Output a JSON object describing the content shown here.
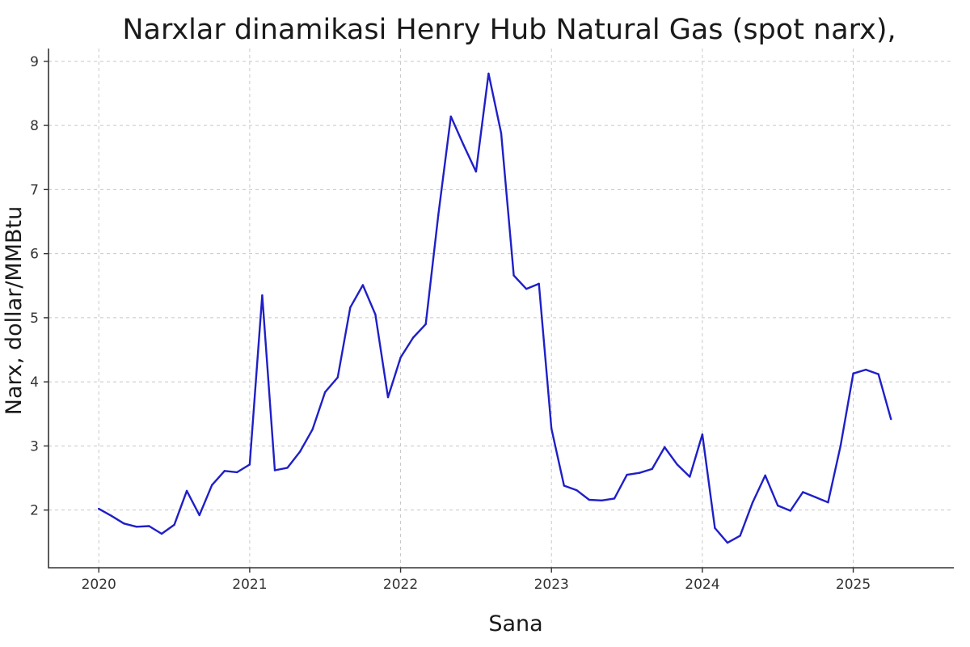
{
  "chart_data": {
    "type": "line",
    "title": "Narxlar dinamikasi Henry Hub Natural Gas (spot narx),",
    "xlabel": "Sana",
    "ylabel": "Narx, dollar/MMBtu",
    "x_ticks": [
      "2020",
      "2021",
      "2022",
      "2023",
      "2024",
      "2025"
    ],
    "y_ticks": [
      2,
      3,
      4,
      5,
      6,
      7,
      8,
      9
    ],
    "xlim": [
      "2019-09",
      "2025-09"
    ],
    "ylim": [
      1.1,
      9.2
    ],
    "grid": true,
    "colors": {
      "line": "#1f1fc8"
    },
    "series": [
      {
        "x": [
          "2020-01",
          "2020-02",
          "2020-03",
          "2020-04",
          "2020-05",
          "2020-06",
          "2020-07",
          "2020-08",
          "2020-09",
          "2020-10",
          "2020-11",
          "2020-12",
          "2021-01",
          "2021-02",
          "2021-03",
          "2021-04",
          "2021-05",
          "2021-06",
          "2021-07",
          "2021-08",
          "2021-09",
          "2021-10",
          "2021-11",
          "2021-12",
          "2022-01",
          "2022-02",
          "2022-03",
          "2022-04",
          "2022-05",
          "2022-06",
          "2022-07",
          "2022-08",
          "2022-09",
          "2022-10",
          "2022-11",
          "2022-12",
          "2023-01",
          "2023-02",
          "2023-03",
          "2023-04",
          "2023-05",
          "2023-06",
          "2023-07",
          "2023-08",
          "2023-09",
          "2023-10",
          "2023-11",
          "2023-12",
          "2024-01",
          "2024-02",
          "2024-03",
          "2024-04",
          "2024-05",
          "2024-06",
          "2024-07",
          "2024-08",
          "2024-09",
          "2024-10",
          "2024-11",
          "2024-12",
          "2025-01",
          "2025-02",
          "2025-03",
          "2025-04"
        ],
        "y": [
          2.02,
          1.91,
          1.79,
          1.74,
          1.75,
          1.63,
          1.77,
          2.3,
          1.92,
          2.39,
          2.61,
          2.59,
          2.71,
          5.35,
          2.62,
          2.66,
          2.91,
          3.26,
          3.84,
          4.07,
          5.16,
          5.51,
          5.05,
          3.76,
          4.38,
          4.69,
          4.9,
          6.6,
          8.14,
          7.7,
          7.28,
          8.81,
          7.88,
          5.66,
          5.45,
          5.53,
          3.27,
          2.38,
          2.31,
          2.16,
          2.15,
          2.18,
          2.55,
          2.58,
          2.64,
          2.98,
          2.71,
          2.52,
          3.18,
          1.72,
          1.49,
          1.6,
          2.12,
          2.54,
          2.07,
          1.99,
          2.28,
          2.2,
          2.12,
          3.01,
          4.13,
          4.19,
          4.12,
          3.42
        ]
      }
    ]
  }
}
